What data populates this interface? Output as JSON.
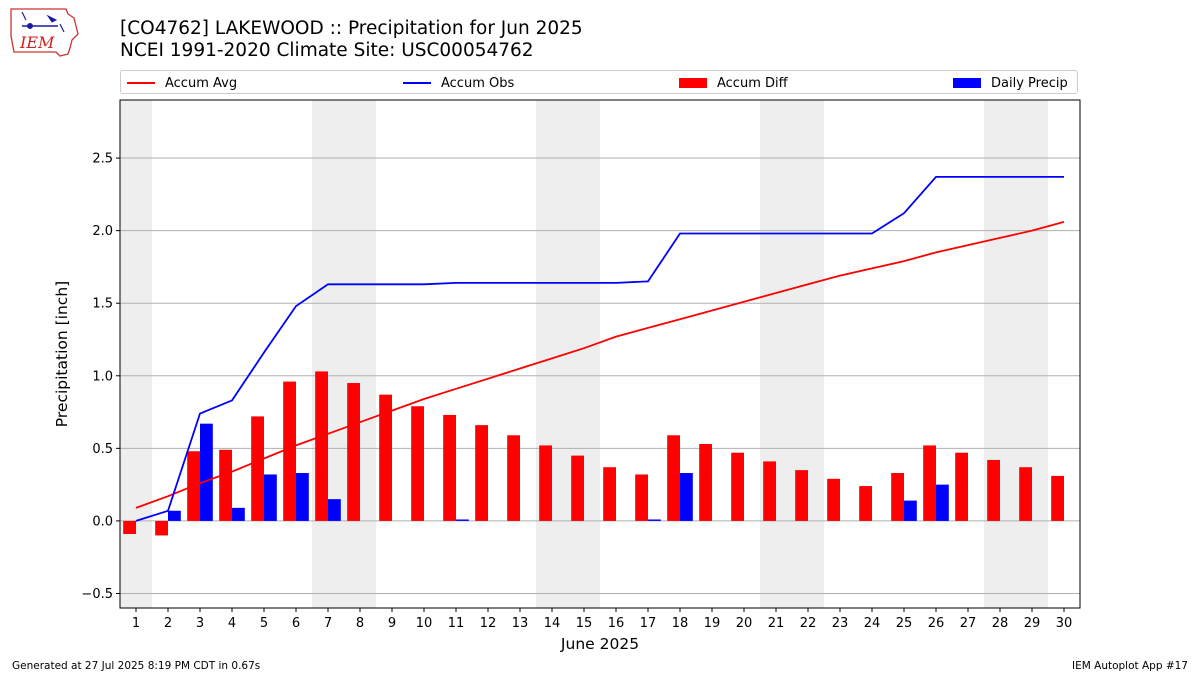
{
  "header": {
    "title_line1": "[CO4762] LAKEWOOD :: Precipitation for Jun 2025",
    "title_line2": "NCEI 1991-2020 Climate Site: USC00054762",
    "logo_text": "IEM"
  },
  "legend": {
    "items": [
      {
        "label": "Accum Avg",
        "kind": "line",
        "color": "#ff0000"
      },
      {
        "label": "Accum Obs",
        "kind": "line",
        "color": "#0000ff"
      },
      {
        "label": "Accum Diff",
        "kind": "patch",
        "color": "#ff0000"
      },
      {
        "label": "Daily Precip",
        "kind": "patch",
        "color": "#0000ff"
      }
    ]
  },
  "footer": {
    "left": "Generated at 27 Jul 2025 8:19 PM CDT in 0.67s",
    "right": "IEM Autoplot App #17"
  },
  "chart_data": {
    "type": "bar",
    "xlabel": "June 2025",
    "ylabel": "Precipitation [inch]",
    "x": [
      1,
      2,
      3,
      4,
      5,
      6,
      7,
      8,
      9,
      10,
      11,
      12,
      13,
      14,
      15,
      16,
      17,
      18,
      19,
      20,
      21,
      22,
      23,
      24,
      25,
      26,
      27,
      28,
      29,
      30
    ],
    "ylim": [
      -0.6,
      2.9
    ],
    "yticks": [
      -0.5,
      0.0,
      0.5,
      1.0,
      1.5,
      2.0,
      2.5
    ],
    "grid": true,
    "legend_position": "top",
    "weekend_shading": [
      [
        1,
        1
      ],
      [
        7,
        8
      ],
      [
        14,
        15
      ],
      [
        21,
        22
      ],
      [
        28,
        29
      ]
    ],
    "weekend_color": "#eeeeee",
    "series": [
      {
        "name": "Accum Avg",
        "kind": "line",
        "color": "#ff0000",
        "values": [
          0.09,
          0.17,
          0.26,
          0.34,
          0.43,
          0.52,
          0.6,
          0.68,
          0.76,
          0.84,
          0.91,
          0.98,
          1.05,
          1.12,
          1.19,
          1.27,
          1.33,
          1.39,
          1.45,
          1.51,
          1.57,
          1.63,
          1.69,
          1.74,
          1.79,
          1.85,
          1.9,
          1.95,
          2.0,
          2.06
        ]
      },
      {
        "name": "Accum Obs",
        "kind": "line",
        "color": "#0000ff",
        "values": [
          0.0,
          0.07,
          0.74,
          0.83,
          1.16,
          1.48,
          1.63,
          1.63,
          1.63,
          1.63,
          1.64,
          1.64,
          1.64,
          1.64,
          1.64,
          1.64,
          1.65,
          1.98,
          1.98,
          1.98,
          1.98,
          1.98,
          1.98,
          1.98,
          2.12,
          2.37,
          2.37,
          2.37,
          2.37,
          2.37
        ]
      },
      {
        "name": "Accum Diff",
        "kind": "bar",
        "color": "#ff0000",
        "values": [
          -0.09,
          -0.1,
          0.48,
          0.49,
          0.72,
          0.96,
          1.03,
          0.95,
          0.87,
          0.79,
          0.73,
          0.66,
          0.59,
          0.52,
          0.45,
          0.37,
          0.32,
          0.59,
          0.53,
          0.47,
          0.41,
          0.35,
          0.29,
          0.24,
          0.33,
          0.52,
          0.47,
          0.42,
          0.37,
          0.31
        ]
      },
      {
        "name": "Daily Precip",
        "kind": "bar",
        "color": "#0000ff",
        "values": [
          0.0,
          0.07,
          0.67,
          0.09,
          0.32,
          0.33,
          0.15,
          0.0,
          0.0,
          0.0,
          0.01,
          0.0,
          0.0,
          0.0,
          0.0,
          0.0,
          0.01,
          0.33,
          0.0,
          0.0,
          0.0,
          0.0,
          0.0,
          0.0,
          0.14,
          0.25,
          0.0,
          0.0,
          0.0,
          0.0
        ]
      }
    ]
  }
}
